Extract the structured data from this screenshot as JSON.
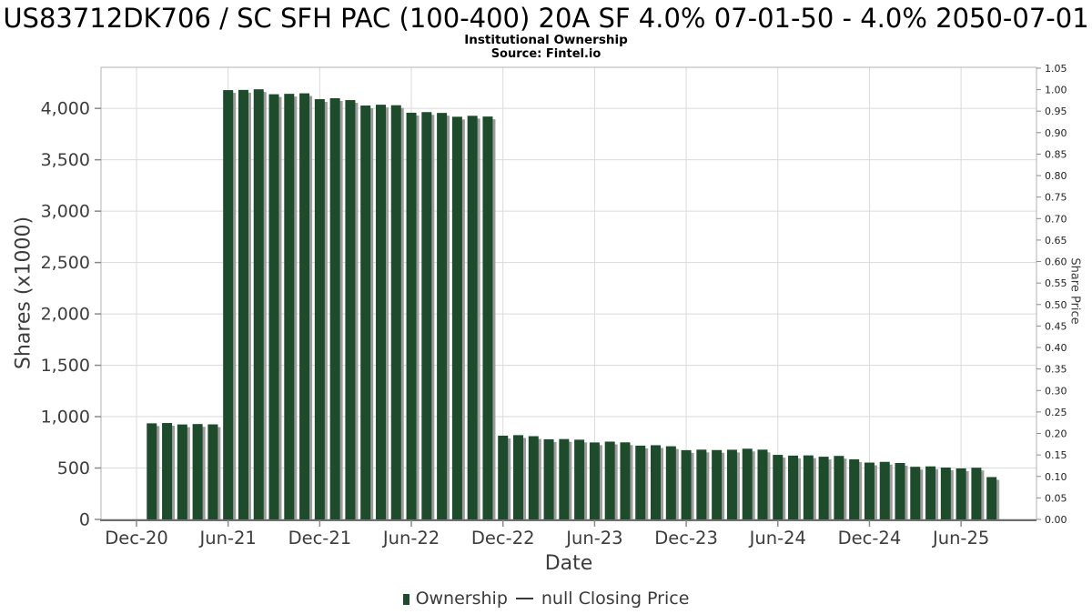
{
  "header": {
    "title": "US83712DK706 / SC SFH PAC (100-400) 20A SF 4.0% 07-01-50 - 4.0% 2050-07-01",
    "subtitle": "Institutional Ownership",
    "source": "Source: Fintel.io"
  },
  "legend": {
    "ownership_label": "Ownership",
    "price_label": "null Closing Price"
  },
  "colors": {
    "bar": "#1e4b2b",
    "bar_shadow": "#9c9c9c",
    "grid": "#dadada",
    "spine": "#b3b3b3",
    "bottom_spine": "#6e6e6e",
    "tick_mark": "#8a8a8a",
    "tick_text": "#3d3d3d",
    "right_tick_text": "#222222",
    "title_text": "#000000"
  },
  "chart_data": {
    "type": "bar",
    "title": "US83712DK706 / SC SFH PAC (100-400) 20A SF 4.0% 07-01-50 - 4.0% 2050-07-01",
    "subtitle": "Institutional Ownership",
    "source": "Source: Fintel.io",
    "xlabel": "Date",
    "ylabel": "Shares (x1000)",
    "ylabel_right": "Share Price",
    "grid": true,
    "legend_position": "bottom",
    "ylim": [
      0,
      4400
    ],
    "ylim_right": [
      0,
      1.052
    ],
    "y_ticks": [
      "0",
      "500",
      "1,000",
      "1,500",
      "2,000",
      "2,500",
      "3,000",
      "3,500",
      "4,000"
    ],
    "y_ticks_right": [
      "0.00",
      "0.05",
      "0.10",
      "0.15",
      "0.20",
      "0.25",
      "0.30",
      "0.35",
      "0.40",
      "0.45",
      "0.50",
      "0.55",
      "0.60",
      "0.65",
      "0.70",
      "0.75",
      "0.80",
      "0.85",
      "0.90",
      "0.95",
      "1.00",
      "1.05"
    ],
    "x_ticks": [
      "Dec-20",
      "Jun-21",
      "Dec-21",
      "Jun-22",
      "Dec-22",
      "Jun-23",
      "Dec-23",
      "Jun-24",
      "Dec-24",
      "Jun-25"
    ],
    "x_tick_month_interval": 6,
    "categories": [
      "Jan-21",
      "Feb-21",
      "Mar-21",
      "Apr-21",
      "May-21",
      "Jun-21",
      "Jul-21",
      "Aug-21",
      "Sep-21",
      "Oct-21",
      "Nov-21",
      "Dec-21",
      "Jan-22",
      "Feb-22",
      "Mar-22",
      "Apr-22",
      "May-22",
      "Jun-22",
      "Jul-22",
      "Aug-22",
      "Sep-22",
      "Oct-22",
      "Nov-22",
      "Dec-22",
      "Jan-23",
      "Feb-23",
      "Mar-23",
      "Apr-23",
      "May-23",
      "Jun-23",
      "Jul-23",
      "Aug-23",
      "Sep-23",
      "Oct-23",
      "Nov-23",
      "Dec-23",
      "Jan-24",
      "Feb-24",
      "Mar-24",
      "Apr-24",
      "May-24",
      "Jun-24",
      "Jul-24",
      "Aug-24",
      "Sep-24",
      "Oct-24",
      "Nov-24",
      "Dec-24",
      "Jan-25",
      "Feb-25",
      "Mar-25",
      "Apr-25",
      "May-25",
      "Jun-25",
      "Jul-25",
      "Aug-25"
    ],
    "series": [
      {
        "name": "Ownership",
        "values": [
          935,
          938,
          924,
          928,
          925,
          4178,
          4180,
          4186,
          4138,
          4142,
          4147,
          4090,
          4099,
          4081,
          4028,
          4036,
          4031,
          3958,
          3964,
          3956,
          3919,
          3928,
          3921,
          815,
          820,
          810,
          780,
          782,
          776,
          749,
          757,
          750,
          718,
          722,
          712,
          674,
          679,
          675,
          678,
          688,
          679,
          628,
          621,
          623,
          610,
          618,
          585,
          553,
          560,
          549,
          512,
          516,
          505,
          496,
          503,
          412
        ]
      },
      {
        "name": "null Closing Price",
        "values": null
      }
    ]
  }
}
